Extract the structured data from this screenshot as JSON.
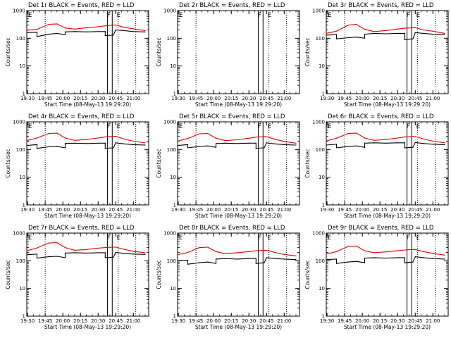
{
  "colors": {
    "events": "#000000",
    "lld": "#e00000",
    "axes": "#000000",
    "background": "#ffffff"
  },
  "chart_data": [
    {
      "type": "line",
      "title": "Det 1r BLACK = Events, RED = LLD",
      "xlabel": "Start Time (08-May-13 19:29:20)",
      "ylabel": "Counts/sec",
      "x_ticks": [
        "19:30",
        "19:45",
        "20:00",
        "20:15",
        "20:30",
        "20:45",
        "21:00"
      ],
      "y_ticks": [
        "1",
        "10",
        "100",
        "1000"
      ],
      "y_scale": "log",
      "ylim": [
        1,
        1000
      ],
      "xlim": [
        "19:29:20",
        "21:13"
      ],
      "flags": [
        "F",
        "E"
      ],
      "series": [
        {
          "name": "Events",
          "color": "#000000",
          "x": [
            "19:29:20",
            "19:38",
            "19:38",
            "19:48",
            "19:55",
            "20:02",
            "20:02",
            "20:10",
            "20:20",
            "20:30",
            "20:36",
            "20:36",
            "20:43",
            "20:45",
            "20:52",
            "21:00",
            "21:10"
          ],
          "y": [
            160,
            165,
            115,
            140,
            150,
            135,
            170,
            175,
            170,
            175,
            175,
            125,
            130,
            200,
            190,
            175,
            170
          ]
        },
        {
          "name": "LLD",
          "color": "#e00000",
          "x": [
            "19:29:20",
            "19:38",
            "19:48",
            "19:55",
            "20:02",
            "20:10",
            "20:20",
            "20:30",
            "20:36",
            "20:43",
            "20:45",
            "20:52",
            "21:00",
            "21:10"
          ],
          "y": [
            195,
            210,
            320,
            330,
            235,
            215,
            240,
            260,
            280,
            300,
            300,
            250,
            220,
            190
          ]
        }
      ]
    },
    {
      "type": "line",
      "title": "Det 2r BLACK = Events, RED = LLD",
      "xlabel": "Start Time (08-May-13 19:29:20)",
      "ylabel": "Counts/sec",
      "x_ticks": [
        "19:30",
        "19:45",
        "20:00",
        "20:15",
        "20:30",
        "20:45",
        "21:00"
      ],
      "y_ticks": [
        "1",
        "10",
        "100",
        "1000"
      ],
      "y_scale": "log",
      "ylim": [
        1,
        1000
      ],
      "xlim": [
        "19:29:20",
        "21:13"
      ],
      "flags": [
        "F",
        "E"
      ],
      "series": []
    },
    {
      "type": "line",
      "title": "Det 3r BLACK = Events, RED = LLD",
      "xlabel": "Start Time (08-May-13 19:29:20)",
      "ylabel": "Counts/sec",
      "x_ticks": [
        "19:30",
        "19:45",
        "20:00",
        "20:15",
        "20:30",
        "20:45",
        "21:00"
      ],
      "y_ticks": [
        "1",
        "10",
        "100",
        "1000"
      ],
      "y_scale": "log",
      "ylim": [
        1,
        1000
      ],
      "xlim": [
        "19:29:20",
        "21:13"
      ],
      "flags": [
        "F",
        "E"
      ],
      "series": [
        {
          "name": "Events",
          "color": "#000000",
          "x": [
            "19:29:20",
            "19:38",
            "19:38",
            "19:48",
            "19:55",
            "20:02",
            "20:02",
            "20:10",
            "20:20",
            "20:30",
            "20:36",
            "20:36",
            "20:43",
            "20:45",
            "20:52",
            "21:00",
            "21:10"
          ],
          "y": [
            130,
            135,
            95,
            105,
            110,
            100,
            140,
            150,
            145,
            150,
            150,
            90,
            95,
            160,
            150,
            140,
            135
          ]
        },
        {
          "name": "LLD",
          "color": "#e00000",
          "x": [
            "19:29:20",
            "19:38",
            "19:48",
            "19:55",
            "20:02",
            "20:10",
            "20:20",
            "20:30",
            "20:36",
            "20:43",
            "20:45",
            "20:52",
            "21:00",
            "21:10"
          ],
          "y": [
            150,
            180,
            300,
            320,
            210,
            175,
            190,
            215,
            230,
            240,
            240,
            200,
            180,
            150
          ]
        }
      ]
    },
    {
      "type": "line",
      "title": "Det 4r BLACK = Events, RED = LLD",
      "xlabel": "Start Time (08-May-13 19:29:20)",
      "ylabel": "Counts/sec",
      "x_ticks": [
        "19:30",
        "19:45",
        "20:00",
        "20:15",
        "20:30",
        "20:45",
        "21:00"
      ],
      "y_ticks": [
        "1",
        "10",
        "100",
        "1000"
      ],
      "y_scale": "log",
      "ylim": [
        1,
        1000
      ],
      "xlim": [
        "19:29:20",
        "21:13"
      ],
      "flags": [
        "F",
        "E"
      ],
      "series": [
        {
          "name": "Events",
          "color": "#000000",
          "x": [
            "19:29:20",
            "19:38",
            "19:38",
            "19:48",
            "19:55",
            "20:02",
            "20:02",
            "20:10",
            "20:20",
            "20:30",
            "20:36",
            "20:36",
            "20:43",
            "20:45",
            "20:52",
            "21:00",
            "21:10"
          ],
          "y": [
            140,
            150,
            110,
            125,
            130,
            115,
            165,
            170,
            165,
            170,
            170,
            110,
            115,
            175,
            160,
            150,
            145
          ]
        },
        {
          "name": "LLD",
          "color": "#e00000",
          "x": [
            "19:29:20",
            "19:38",
            "19:48",
            "19:55",
            "20:02",
            "20:10",
            "20:20",
            "20:30",
            "20:36",
            "20:43",
            "20:45",
            "20:52",
            "21:00",
            "21:10"
          ],
          "y": [
            210,
            260,
            380,
            390,
            260,
            215,
            230,
            260,
            285,
            300,
            300,
            240,
            200,
            175
          ]
        }
      ]
    },
    {
      "type": "line",
      "title": "Det 5r BLACK = Events, RED = LLD",
      "xlabel": "Start Time (08-May-13 19:29:20)",
      "ylabel": "Counts/sec",
      "x_ticks": [
        "19:30",
        "19:45",
        "20:00",
        "20:15",
        "20:30",
        "20:45",
        "21:00"
      ],
      "y_ticks": [
        "1",
        "10",
        "100",
        "1000"
      ],
      "y_scale": "log",
      "ylim": [
        1,
        1000
      ],
      "xlim": [
        "19:29:20",
        "21:13"
      ],
      "flags": [
        "F",
        "E"
      ],
      "series": [
        {
          "name": "Events",
          "color": "#000000",
          "x": [
            "19:29:20",
            "19:38",
            "19:38",
            "19:48",
            "19:55",
            "20:02",
            "20:02",
            "20:10",
            "20:20",
            "20:30",
            "20:36",
            "20:36",
            "20:43",
            "20:45",
            "20:52",
            "21:00",
            "21:10"
          ],
          "y": [
            140,
            150,
            115,
            130,
            135,
            120,
            165,
            170,
            165,
            170,
            170,
            110,
            115,
            175,
            160,
            150,
            145
          ]
        },
        {
          "name": "LLD",
          "color": "#e00000",
          "x": [
            "19:29:20",
            "19:38",
            "19:48",
            "19:55",
            "20:02",
            "20:10",
            "20:20",
            "20:30",
            "20:36",
            "20:43",
            "20:45",
            "20:52",
            "21:00",
            "21:10"
          ],
          "y": [
            200,
            250,
            370,
            380,
            255,
            210,
            225,
            255,
            280,
            290,
            290,
            235,
            195,
            170
          ]
        }
      ]
    },
    {
      "type": "line",
      "title": "Det 6r BLACK = Events, RED = LLD",
      "xlabel": "Start Time (08-May-13 19:29:20)",
      "ylabel": "Counts/sec",
      "x_ticks": [
        "19:30",
        "19:45",
        "20:00",
        "20:15",
        "20:30",
        "20:45",
        "21:00"
      ],
      "y_ticks": [
        "1",
        "10",
        "100",
        "1000"
      ],
      "y_scale": "log",
      "ylim": [
        1,
        1000
      ],
      "xlim": [
        "19:29:20",
        "21:13"
      ],
      "flags": [
        "F",
        "E"
      ],
      "series": [
        {
          "name": "Events",
          "color": "#000000",
          "x": [
            "19:29:20",
            "19:38",
            "19:38",
            "19:48",
            "19:55",
            "20:02",
            "20:02",
            "20:10",
            "20:20",
            "20:30",
            "20:36",
            "20:36",
            "20:43",
            "20:45",
            "20:52",
            "21:00",
            "21:10"
          ],
          "y": [
            145,
            155,
            115,
            130,
            135,
            120,
            170,
            175,
            170,
            175,
            175,
            115,
            120,
            180,
            165,
            155,
            150
          ]
        },
        {
          "name": "LLD",
          "color": "#e00000",
          "x": [
            "19:29:20",
            "19:38",
            "19:48",
            "19:55",
            "20:02",
            "20:10",
            "20:20",
            "20:30",
            "20:36",
            "20:43",
            "20:45",
            "20:52",
            "21:00",
            "21:10"
          ],
          "y": [
            205,
            255,
            380,
            390,
            260,
            215,
            230,
            260,
            285,
            295,
            295,
            240,
            200,
            175
          ]
        }
      ]
    },
    {
      "type": "line",
      "title": "Det 7r BLACK = Events, RED = LLD",
      "xlabel": "Start Time (08-May-13 19:29:20)",
      "ylabel": "Counts/sec",
      "x_ticks": [
        "19:30",
        "19:45",
        "20:00",
        "20:15",
        "20:30",
        "20:45",
        "21:00"
      ],
      "y_ticks": [
        "1",
        "10",
        "100",
        "1000"
      ],
      "y_scale": "log",
      "ylim": [
        1,
        1000
      ],
      "xlim": [
        "19:29:20",
        "21:13"
      ],
      "flags": [
        "F",
        "E"
      ],
      "series": [
        {
          "name": "Events",
          "color": "#000000",
          "x": [
            "19:29:20",
            "19:38",
            "19:38",
            "19:48",
            "19:55",
            "20:02",
            "20:02",
            "20:10",
            "20:20",
            "20:30",
            "20:36",
            "20:36",
            "20:43",
            "20:45",
            "20:52",
            "21:00",
            "21:10"
          ],
          "y": [
            165,
            175,
            125,
            140,
            145,
            130,
            190,
            195,
            190,
            195,
            195,
            130,
            135,
            200,
            185,
            175,
            170
          ]
        },
        {
          "name": "LLD",
          "color": "#e00000",
          "x": [
            "19:29:20",
            "19:38",
            "19:48",
            "19:55",
            "20:02",
            "20:10",
            "20:20",
            "20:30",
            "20:36",
            "20:43",
            "20:45",
            "20:52",
            "21:00",
            "21:10"
          ],
          "y": [
            230,
            290,
            440,
            450,
            300,
            240,
            255,
            285,
            300,
            310,
            310,
            260,
            220,
            195
          ]
        }
      ]
    },
    {
      "type": "line",
      "title": "Det 8r BLACK = Events, RED = LLD",
      "xlabel": "Start Time (08-May-13 19:29:20)",
      "ylabel": "Counts/sec",
      "x_ticks": [
        "19:30",
        "19:45",
        "20:00",
        "20:15",
        "20:30",
        "20:45",
        "21:00"
      ],
      "y_ticks": [
        "1",
        "10",
        "100",
        "1000"
      ],
      "y_scale": "log",
      "ylim": [
        1,
        1000
      ],
      "xlim": [
        "19:29:20",
        "21:13"
      ],
      "flags": [
        "F",
        "E"
      ],
      "series": [
        {
          "name": "Events",
          "color": "#000000",
          "x": [
            "19:29:20",
            "19:38",
            "19:38",
            "19:48",
            "19:55",
            "20:02",
            "20:02",
            "20:10",
            "20:20",
            "20:30",
            "20:36",
            "20:36",
            "20:43",
            "20:45",
            "20:52",
            "21:00",
            "21:10"
          ],
          "y": [
            100,
            105,
            75,
            85,
            90,
            80,
            115,
            120,
            115,
            120,
            120,
            80,
            85,
            130,
            120,
            115,
            110
          ]
        },
        {
          "name": "LLD",
          "color": "#e00000",
          "x": [
            "19:29:20",
            "19:38",
            "19:48",
            "19:55",
            "20:02",
            "20:10",
            "20:20",
            "20:30",
            "20:36",
            "20:43",
            "20:45",
            "20:52",
            "21:00",
            "21:10"
          ],
          "y": [
            165,
            200,
            300,
            310,
            215,
            180,
            195,
            215,
            230,
            240,
            240,
            200,
            170,
            150
          ]
        }
      ]
    },
    {
      "type": "line",
      "title": "Det 9r BLACK = Events, RED = LLD",
      "xlabel": "Start Time (08-May-13 19:29:20)",
      "ylabel": "Counts/sec",
      "x_ticks": [
        "19:30",
        "19:45",
        "20:00",
        "20:15",
        "20:30",
        "20:45",
        "21:00"
      ],
      "y_ticks": [
        "1",
        "10",
        "100",
        "1000"
      ],
      "y_scale": "log",
      "ylim": [
        1,
        1000
      ],
      "xlim": [
        "19:29:20",
        "21:13"
      ],
      "flags": [
        "F",
        "E"
      ],
      "series": [
        {
          "name": "Events",
          "color": "#000000",
          "x": [
            "19:29:20",
            "19:38",
            "19:38",
            "19:48",
            "19:55",
            "20:02",
            "20:02",
            "20:10",
            "20:20",
            "20:30",
            "20:36",
            "20:36",
            "20:43",
            "20:45",
            "20:52",
            "21:00",
            "21:10"
          ],
          "y": [
            110,
            115,
            80,
            90,
            95,
            85,
            125,
            130,
            125,
            130,
            130,
            85,
            90,
            140,
            130,
            120,
            115
          ]
        },
        {
          "name": "LLD",
          "color": "#e00000",
          "x": [
            "19:29:20",
            "19:38",
            "19:48",
            "19:55",
            "20:02",
            "20:10",
            "20:20",
            "20:30",
            "20:36",
            "20:43",
            "20:45",
            "20:52",
            "21:00",
            "21:10"
          ],
          "y": [
            175,
            215,
            330,
            340,
            230,
            195,
            210,
            230,
            245,
            255,
            255,
            215,
            185,
            160
          ]
        }
      ]
    }
  ],
  "markers": {
    "dotted_lines": [
      "19:45",
      "20:47",
      "21:02"
    ],
    "solid_line_pairs": [
      [
        "20:38",
        "20:42"
      ]
    ]
  }
}
